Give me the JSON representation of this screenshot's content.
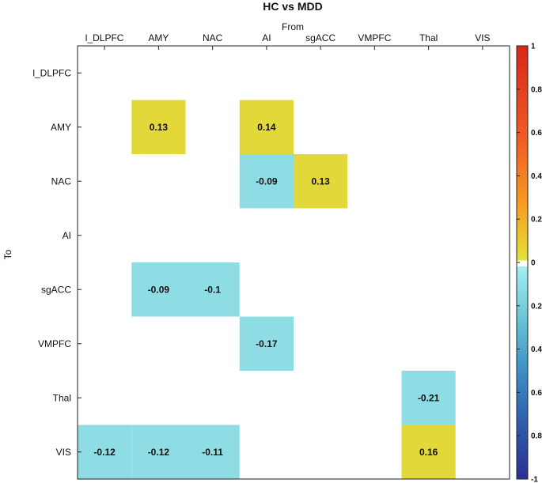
{
  "chart_data": {
    "type": "heatmap",
    "title": "HC vs MDD",
    "xlabel": "From",
    "ylabel": "To",
    "x_categories": [
      "l_DLPFC",
      "AMY",
      "NAC",
      "AI",
      "sgACC",
      "VMPFC",
      "Thal",
      "VIS"
    ],
    "y_categories": [
      "l_DLPFC",
      "AMY",
      "NAC",
      "AI",
      "sgACC",
      "VMPFC",
      "Thal",
      "VIS"
    ],
    "cells": [
      {
        "from": "AMY",
        "to": "AMY",
        "value": 0.13,
        "label": "0.13"
      },
      {
        "from": "AI",
        "to": "AMY",
        "value": 0.14,
        "label": "0.14"
      },
      {
        "from": "AI",
        "to": "NAC",
        "value": -0.09,
        "label": "-0.09"
      },
      {
        "from": "sgACC",
        "to": "NAC",
        "value": 0.13,
        "label": "0.13"
      },
      {
        "from": "AMY",
        "to": "sgACC",
        "value": -0.09,
        "label": "-0.09"
      },
      {
        "from": "NAC",
        "to": "sgACC",
        "value": -0.1,
        "label": "-0.1"
      },
      {
        "from": "AI",
        "to": "VMPFC",
        "value": -0.17,
        "label": "-0.17"
      },
      {
        "from": "Thal",
        "to": "Thal",
        "value": -0.21,
        "label": "-0.21"
      },
      {
        "from": "l_DLPFC",
        "to": "VIS",
        "value": -0.12,
        "label": "-0.12"
      },
      {
        "from": "AMY",
        "to": "VIS",
        "value": -0.12,
        "label": "-0.12"
      },
      {
        "from": "NAC",
        "to": "VIS",
        "value": -0.11,
        "label": "-0.11"
      },
      {
        "from": "Thal",
        "to": "VIS",
        "value": 0.16,
        "label": "0.16"
      }
    ],
    "colorbar": {
      "range": [
        -1,
        1
      ],
      "tick_labels": [
        "1",
        "0.8",
        "0.6",
        "0.4",
        "0.2",
        "0",
        "0.2",
        "0.4",
        "0.6",
        "0.8",
        "-1"
      ],
      "positive_color": "#e3d83a",
      "negative_color": "#8fdde4"
    },
    "grid": false
  }
}
